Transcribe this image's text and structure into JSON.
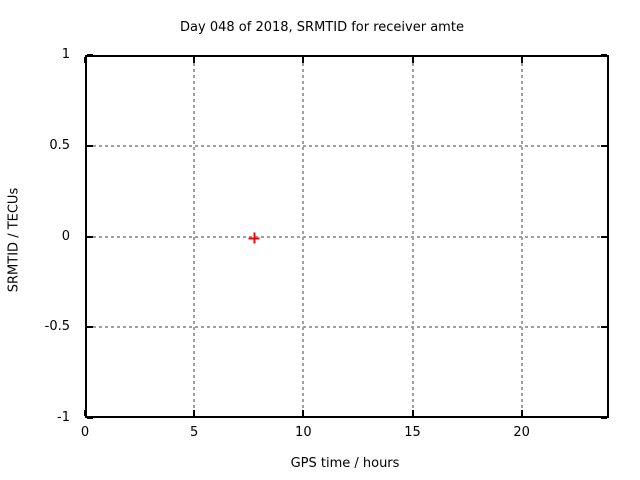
{
  "chart_data": {
    "type": "scatter",
    "title": "Day 048 of 2018, SRMTID for receiver amte",
    "xlabel": "GPS time / hours",
    "ylabel": "SRMTID / TECUs",
    "xlim": [
      0,
      24
    ],
    "ylim": [
      -1,
      1
    ],
    "grid": true,
    "tick_style": "inward-mirrored",
    "legend": "none",
    "x_ticks": [
      {
        "value": 0,
        "label": "0"
      },
      {
        "value": 5,
        "label": "5"
      },
      {
        "value": 10,
        "label": "10"
      },
      {
        "value": 15,
        "label": "15"
      },
      {
        "value": 20,
        "label": "20"
      }
    ],
    "y_ticks": [
      {
        "value": -1,
        "label": "-1"
      },
      {
        "value": -0.5,
        "label": "-0.5"
      },
      {
        "value": 0,
        "label": "0"
      },
      {
        "value": 0.5,
        "label": "0.5"
      },
      {
        "value": 1,
        "label": "1"
      }
    ],
    "series": [
      {
        "marker": "plus",
        "color": "#ff0000",
        "points": [
          {
            "x": 7.75,
            "y": -0.01
          }
        ]
      }
    ]
  },
  "colors": {
    "background": "#ffffff",
    "axis_border": "#000000",
    "tick": "#000000",
    "grid": "#a0a0a0",
    "text": "#000000",
    "marker_red": "#ff0000"
  }
}
